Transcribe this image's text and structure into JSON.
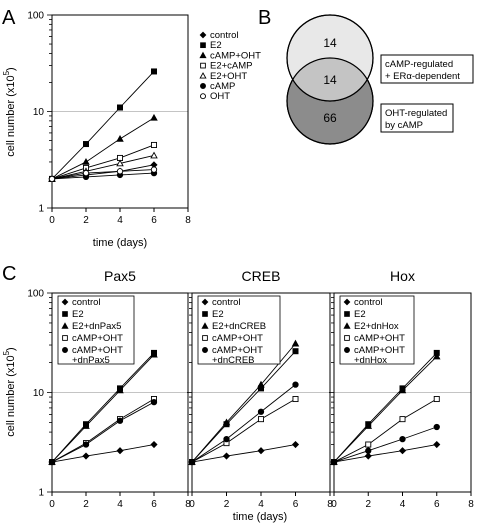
{
  "panels": {
    "A": "A",
    "B": "B",
    "C": "C"
  },
  "colors": {
    "line": "#000000",
    "gridline": "#b0b0b0",
    "venn_top_fill": "#e8e8e8",
    "venn_bottom_fill": "#8c8c8c",
    "venn_overlap_fill": "#c4c4c4"
  },
  "chart_data": [
    {
      "panel": "A",
      "type": "line",
      "x_scale": "linear",
      "y_scale": "log",
      "xlabel": "time (days)",
      "ylabel": "cell number (x10^5)",
      "ylabel_parts": [
        "cell number (x10",
        "5",
        ")"
      ],
      "xlim": [
        0,
        8
      ],
      "ylim": [
        1,
        100
      ],
      "x_ticks": [
        "0",
        "2",
        "4",
        "6",
        "8"
      ],
      "y_ticks": [
        "1",
        "10",
        "100"
      ],
      "reference_line_y": 10,
      "series": [
        {
          "name": "control",
          "marker": "diamond",
          "x": [
            0,
            2,
            4,
            6
          ],
          "y": [
            2,
            2.2,
            2.4,
            2.8
          ]
        },
        {
          "name": "E2",
          "marker": "square-filled",
          "x": [
            0,
            2,
            4,
            6
          ],
          "y": [
            2,
            4.6,
            11,
            26
          ]
        },
        {
          "name": "cAMP+OHT",
          "marker": "triangle-filled",
          "x": [
            0,
            2,
            4,
            6
          ],
          "y": [
            2,
            3,
            5.2,
            8.6
          ]
        },
        {
          "name": "E2+cAMP",
          "marker": "square-open",
          "x": [
            0,
            2,
            4,
            6
          ],
          "y": [
            2,
            2.6,
            3.3,
            4.5
          ]
        },
        {
          "name": "E2+OHT",
          "marker": "triangle-open",
          "x": [
            0,
            2,
            4,
            6
          ],
          "y": [
            2,
            2.4,
            2.9,
            3.5
          ]
        },
        {
          "name": "cAMP",
          "marker": "circle-filled",
          "x": [
            0,
            2,
            4,
            6
          ],
          "y": [
            2,
            2.1,
            2.2,
            2.3
          ]
        },
        {
          "name": "OHT",
          "marker": "circle-open",
          "x": [
            0,
            2,
            4,
            6
          ],
          "y": [
            2,
            2.3,
            2.4,
            2.5
          ]
        }
      ]
    },
    {
      "panel": "C-Pax5",
      "type": "line",
      "title": "Pax5",
      "x_scale": "linear",
      "y_scale": "log",
      "ylabel": "cell number (x10^5)",
      "ylabel_parts": [
        "cell number (x10",
        "5",
        ")"
      ],
      "xlim": [
        0,
        8
      ],
      "ylim": [
        1,
        100
      ],
      "x_ticks": [
        "0",
        "2",
        "4",
        "6",
        "8"
      ],
      "y_ticks": [
        "1",
        "10",
        "100"
      ],
      "reference_line_y": 10,
      "series": [
        {
          "name": "control",
          "marker": "diamond",
          "x": [
            0,
            2,
            4,
            6
          ],
          "y": [
            2,
            2.3,
            2.6,
            3
          ]
        },
        {
          "name": "E2",
          "marker": "square-filled",
          "x": [
            0,
            2,
            4,
            6
          ],
          "y": [
            2,
            4.8,
            11,
            25
          ]
        },
        {
          "name": "E2+dnPax5",
          "marker": "triangle-filled",
          "x": [
            0,
            2,
            4,
            6
          ],
          "y": [
            2,
            4.6,
            10.5,
            24
          ]
        },
        {
          "name": "cAMP+OHT",
          "marker": "square-open",
          "x": [
            0,
            2,
            4,
            6
          ],
          "y": [
            2,
            3.1,
            5.4,
            8.6
          ]
        },
        {
          "name": "cAMP+OHT +dnPax5",
          "marker": "circle-filled",
          "x": [
            0,
            2,
            4,
            6
          ],
          "y": [
            2,
            3,
            5.2,
            8
          ]
        }
      ]
    },
    {
      "panel": "C-CREB",
      "type": "line",
      "title": "CREB",
      "x_scale": "linear",
      "y_scale": "log",
      "xlabel": "time (days)",
      "xlim": [
        0,
        8
      ],
      "ylim": [
        1,
        100
      ],
      "x_ticks": [
        "0",
        "2",
        "4",
        "6",
        "8"
      ],
      "reference_line_y": 10,
      "series": [
        {
          "name": "control",
          "marker": "diamond",
          "x": [
            0,
            2,
            4,
            6
          ],
          "y": [
            2,
            2.3,
            2.6,
            3
          ]
        },
        {
          "name": "E2",
          "marker": "square-filled",
          "x": [
            0,
            2,
            4,
            6
          ],
          "y": [
            2,
            4.8,
            11,
            26
          ]
        },
        {
          "name": "E2+dnCREB",
          "marker": "triangle-filled",
          "x": [
            0,
            2,
            4,
            6
          ],
          "y": [
            2,
            5,
            12,
            31
          ]
        },
        {
          "name": "cAMP+OHT",
          "marker": "square-open",
          "x": [
            0,
            2,
            4,
            6
          ],
          "y": [
            2,
            3.1,
            5.4,
            8.6
          ]
        },
        {
          "name": "cAMP+OHT +dnCREB",
          "marker": "circle-filled",
          "x": [
            0,
            2,
            4,
            6
          ],
          "y": [
            2,
            3.4,
            6.4,
            12
          ]
        }
      ]
    },
    {
      "panel": "C-Hox",
      "type": "line",
      "title": "Hox",
      "x_scale": "linear",
      "y_scale": "log",
      "xlim": [
        0,
        8
      ],
      "ylim": [
        1,
        100
      ],
      "x_ticks": [
        "0",
        "2",
        "4",
        "6",
        "8"
      ],
      "reference_line_y": 10,
      "series": [
        {
          "name": "control",
          "marker": "diamond",
          "x": [
            0,
            2,
            4,
            6
          ],
          "y": [
            2,
            2.3,
            2.6,
            3
          ]
        },
        {
          "name": "E2",
          "marker": "square-filled",
          "x": [
            0,
            2,
            4,
            6
          ],
          "y": [
            2,
            4.8,
            11,
            25
          ]
        },
        {
          "name": "E2+dnHox",
          "marker": "triangle-filled",
          "x": [
            0,
            2,
            4,
            6
          ],
          "y": [
            2,
            4.6,
            10.5,
            23
          ]
        },
        {
          "name": "cAMP+OHT",
          "marker": "square-open",
          "x": [
            0,
            2,
            4,
            6
          ],
          "y": [
            2,
            3,
            5.4,
            8.6
          ]
        },
        {
          "name": "cAMP+OHT +dnHox",
          "marker": "circle-filled",
          "x": [
            0,
            2,
            4,
            6
          ],
          "y": [
            2,
            2.6,
            3.4,
            4.5
          ]
        }
      ]
    }
  ],
  "venn": {
    "top_only": "14",
    "overlap": "14",
    "bottom_only": "66",
    "top_label_lines": [
      "cAMP-regulated",
      "+ ERα-dependent"
    ],
    "bottom_label_lines": [
      "OHT-regulated",
      "by cAMP"
    ]
  }
}
